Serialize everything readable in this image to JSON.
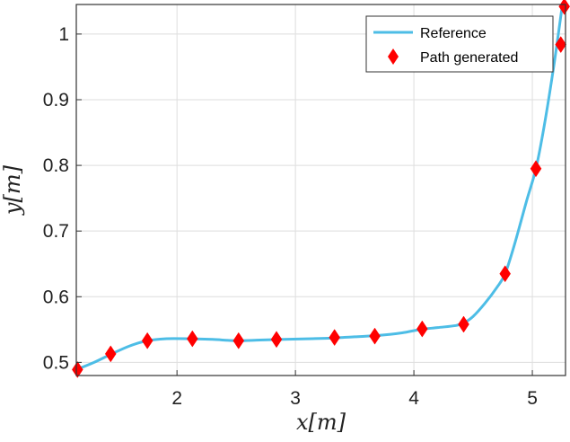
{
  "chart_data": {
    "type": "line",
    "xlabel": "x[m]",
    "ylabel": "y[m]",
    "xlim": [
      1.15,
      5.28
    ],
    "ylim": [
      0.48,
      1.045
    ],
    "xticks": [
      2,
      3,
      4,
      5
    ],
    "xtick_labels": [
      "2",
      "3",
      "4",
      "5"
    ],
    "yticks": [
      0.5,
      0.6,
      0.7,
      0.8,
      0.9,
      1.0
    ],
    "ytick_labels": [
      "0.5",
      "0.6",
      "0.7",
      "0.8",
      "0.9",
      "1"
    ],
    "grid": true,
    "legend_position": "top-right",
    "series": [
      {
        "name": "Reference",
        "style": "line",
        "color": "#4dbde6",
        "x": [
          1.15,
          1.3,
          1.45,
          1.6,
          1.75,
          1.9,
          2.1,
          2.3,
          2.5,
          2.7,
          2.9,
          3.1,
          3.3,
          3.5,
          3.7,
          3.9,
          4.05,
          4.2,
          4.35,
          4.42,
          4.5,
          4.6,
          4.7,
          4.77,
          4.85,
          4.95,
          5.03,
          5.1,
          5.18,
          5.25
        ],
        "y": [
          0.489,
          0.5,
          0.513,
          0.525,
          0.533,
          0.536,
          0.536,
          0.535,
          0.533,
          0.534,
          0.535,
          0.536,
          0.537,
          0.539,
          0.541,
          0.545,
          0.55,
          0.553,
          0.556,
          0.56,
          0.57,
          0.59,
          0.614,
          0.635,
          0.68,
          0.745,
          0.795,
          0.86,
          0.95,
          1.04
        ]
      },
      {
        "name": "Path generated",
        "style": "markers",
        "marker": "diamond",
        "color": "#ff0000",
        "x": [
          1.16,
          1.44,
          1.75,
          2.13,
          2.52,
          2.84,
          3.33,
          3.67,
          4.07,
          4.42,
          4.77,
          5.03,
          5.24,
          5.27
        ],
        "y": [
          0.489,
          0.513,
          0.533,
          0.536,
          0.533,
          0.535,
          0.538,
          0.54,
          0.551,
          0.558,
          0.635,
          0.795,
          0.984,
          1.042
        ]
      }
    ]
  },
  "colors": {
    "reference_line": "#4dbde6",
    "path_marker": "#ff0000",
    "axes": "#333333",
    "grid": "#dedede"
  }
}
